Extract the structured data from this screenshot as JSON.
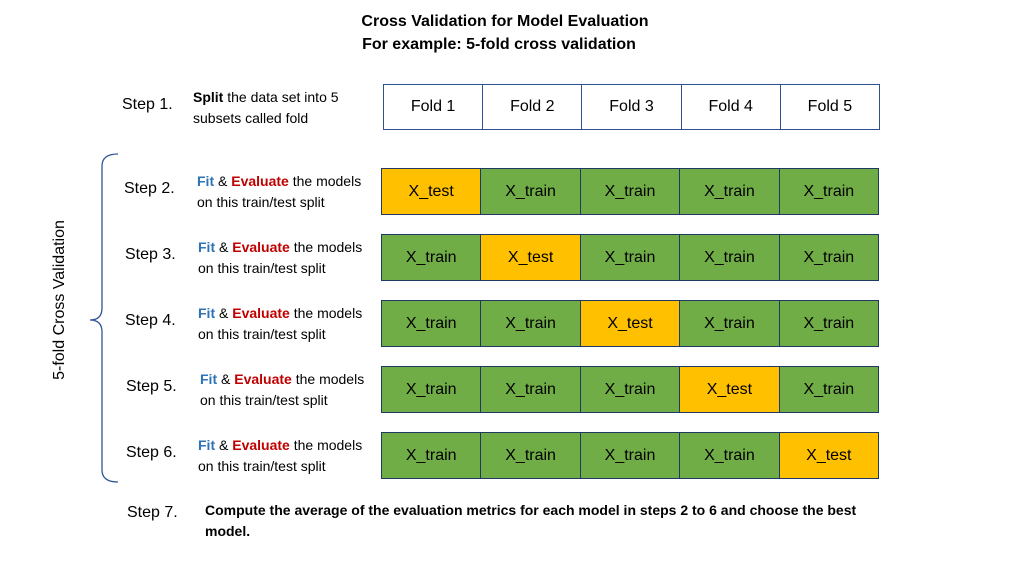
{
  "title": {
    "line1": "Cross Validation for Model Evaluation",
    "line2": "For example:  5-fold cross validation"
  },
  "side_label": "5-fold Cross Validation",
  "colors": {
    "train": "#70ad47",
    "test": "#ffc000",
    "fit": "#2e74b5",
    "evaluate": "#c00000",
    "border": "#1f3864"
  },
  "step1": {
    "label": "Step 1.",
    "bold": "Split",
    "rest": " the data set into 5",
    "line2": "subsets called fold",
    "folds": [
      "Fold 1",
      "Fold 2",
      "Fold 3",
      "Fold 4",
      "Fold 5"
    ]
  },
  "cv_steps": [
    {
      "label": "Step 2.",
      "fit": "Fit",
      "amp": " & ",
      "evaluate": "Evaluate",
      "rest": " the models",
      "line2": "on this train/test split",
      "cells": [
        {
          "text": "X_test",
          "kind": "test"
        },
        {
          "text": "X_train",
          "kind": "train"
        },
        {
          "text": "X_train",
          "kind": "train"
        },
        {
          "text": "X_train",
          "kind": "train"
        },
        {
          "text": "X_train",
          "kind": "train"
        }
      ]
    },
    {
      "label": "Step 3.",
      "fit": "Fit",
      "amp": " & ",
      "evaluate": "Evaluate",
      "rest": " the models",
      "line2": "on this train/test split",
      "cells": [
        {
          "text": "X_train",
          "kind": "train"
        },
        {
          "text": "X_test",
          "kind": "test"
        },
        {
          "text": "X_train",
          "kind": "train"
        },
        {
          "text": "X_train",
          "kind": "train"
        },
        {
          "text": "X_train",
          "kind": "train"
        }
      ]
    },
    {
      "label": "Step 4.",
      "fit": "Fit",
      "amp": " & ",
      "evaluate": "Evaluate",
      "rest": " the models",
      "line2": "on this train/test split",
      "cells": [
        {
          "text": "X_train",
          "kind": "train"
        },
        {
          "text": "X_train",
          "kind": "train"
        },
        {
          "text": "X_test",
          "kind": "test"
        },
        {
          "text": "X_train",
          "kind": "train"
        },
        {
          "text": "X_train",
          "kind": "train"
        }
      ]
    },
    {
      "label": "Step 5.",
      "fit": "Fit",
      "amp": " & ",
      "evaluate": "Evaluate",
      "rest": " the models",
      "line2": "on this train/test split",
      "cells": [
        {
          "text": "X_train",
          "kind": "train"
        },
        {
          "text": "X_train",
          "kind": "train"
        },
        {
          "text": "X_train",
          "kind": "train"
        },
        {
          "text": "X_test",
          "kind": "test"
        },
        {
          "text": "X_train",
          "kind": "train"
        }
      ]
    },
    {
      "label": "Step 6.",
      "fit": "Fit",
      "amp": " & ",
      "evaluate": "Evaluate",
      "rest": " the models",
      "line2": "on this train/test split",
      "cells": [
        {
          "text": "X_train",
          "kind": "train"
        },
        {
          "text": "X_train",
          "kind": "train"
        },
        {
          "text": "X_train",
          "kind": "train"
        },
        {
          "text": "X_train",
          "kind": "train"
        },
        {
          "text": "X_test",
          "kind": "test"
        }
      ]
    }
  ],
  "step7": {
    "label": "Step 7.",
    "text": "Compute the average of the evaluation metrics for each model in steps 2 to 6 and choose the best model."
  }
}
